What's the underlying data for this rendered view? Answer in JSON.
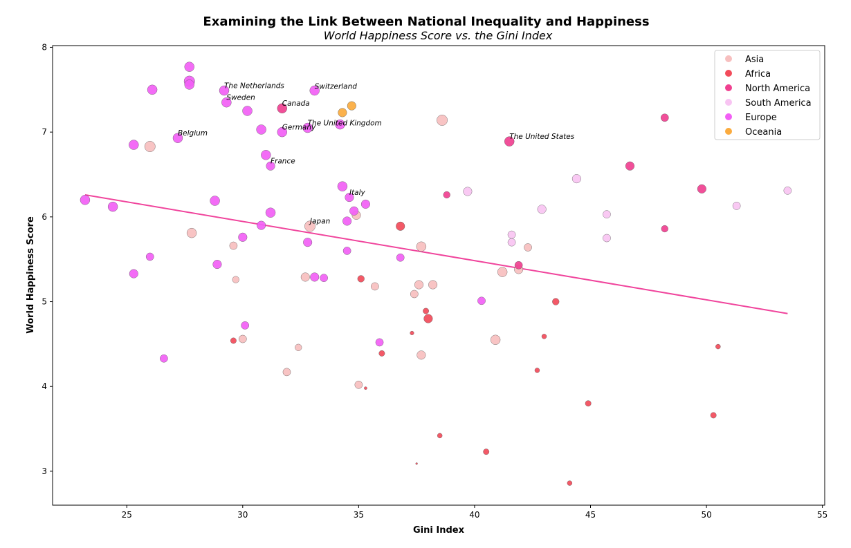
{
  "chart_data": {
    "type": "scatter",
    "title": "Examining the Link Between National Inequality and Happiness",
    "subtitle": "World Happiness Score vs. the Gini Index",
    "xlabel": "Gini Index",
    "ylabel": "World Happiness Score",
    "xlim": [
      21.8,
      55.1
    ],
    "ylim": [
      2.6,
      8.02
    ],
    "xticks": [
      25,
      30,
      35,
      40,
      45,
      50,
      55
    ],
    "yticks": [
      3,
      4,
      5,
      6,
      7,
      8
    ],
    "grid": false,
    "legend_position": "top-right",
    "trendline": {
      "x": [
        23.2,
        53.5
      ],
      "y": [
        6.26,
        4.86
      ],
      "color": "#f0449c"
    },
    "series": [
      {
        "name": "Asia",
        "color": "#f7bfbf",
        "points": [
          [
            26.0,
            6.83,
            11
          ],
          [
            27.8,
            5.81,
            10
          ],
          [
            29.6,
            5.66,
            8
          ],
          [
            29.7,
            5.26,
            7
          ],
          [
            30.0,
            4.56,
            8
          ],
          [
            31.9,
            4.17,
            8
          ],
          [
            32.4,
            4.46,
            7
          ],
          [
            32.7,
            5.29,
            9
          ],
          [
            32.9,
            5.89,
            11
          ],
          [
            34.9,
            6.02,
            9
          ],
          [
            35.0,
            4.02,
            8
          ],
          [
            35.7,
            5.18,
            8
          ],
          [
            37.4,
            5.09,
            8
          ],
          [
            37.6,
            5.2,
            9
          ],
          [
            37.7,
            4.37,
            9
          ],
          [
            37.7,
            5.65,
            10
          ],
          [
            38.2,
            5.2,
            9
          ],
          [
            38.6,
            7.14,
            11
          ],
          [
            40.9,
            4.55,
            10
          ],
          [
            41.2,
            5.35,
            10
          ],
          [
            41.9,
            5.38,
            9
          ],
          [
            42.3,
            5.64,
            8
          ]
        ]
      },
      {
        "name": "Africa",
        "color": "#f24b5a",
        "points": [
          [
            29.6,
            4.54,
            6
          ],
          [
            35.1,
            5.27,
            7
          ],
          [
            35.3,
            3.98,
            3
          ],
          [
            36.0,
            4.39,
            6
          ],
          [
            36.8,
            5.89,
            9
          ],
          [
            37.3,
            4.63,
            4
          ],
          [
            37.5,
            3.09,
            2
          ],
          [
            37.9,
            4.89,
            6
          ],
          [
            38.0,
            4.8,
            9
          ],
          [
            38.5,
            3.42,
            5
          ],
          [
            40.5,
            3.23,
            6
          ],
          [
            42.7,
            4.19,
            5
          ],
          [
            43.0,
            4.59,
            5
          ],
          [
            43.5,
            5.0,
            7
          ],
          [
            44.1,
            2.86,
            5
          ],
          [
            44.9,
            3.8,
            6
          ],
          [
            50.3,
            3.66,
            6
          ],
          [
            50.5,
            4.47,
            5
          ]
        ]
      },
      {
        "name": "North America",
        "color": "#f04090",
        "points": [
          [
            31.7,
            7.28,
            10
          ],
          [
            38.8,
            6.26,
            7
          ],
          [
            41.5,
            6.89,
            10
          ],
          [
            41.9,
            5.43,
            8
          ],
          [
            46.7,
            6.6,
            9
          ],
          [
            48.2,
            7.17,
            8
          ],
          [
            48.2,
            5.86,
            7
          ],
          [
            49.8,
            6.33,
            9
          ]
        ]
      },
      {
        "name": "South America",
        "color": "#f8c4f2",
        "points": [
          [
            39.7,
            6.3,
            9
          ],
          [
            41.6,
            5.79,
            8
          ],
          [
            41.6,
            5.7,
            8
          ],
          [
            42.9,
            6.09,
            9
          ],
          [
            44.4,
            6.45,
            9
          ],
          [
            45.7,
            6.03,
            8
          ],
          [
            45.7,
            5.75,
            8
          ],
          [
            51.3,
            6.13,
            8
          ],
          [
            53.5,
            6.31,
            8
          ]
        ]
      },
      {
        "name": "Europe",
        "color": "#f25ff5",
        "points": [
          [
            23.2,
            6.2,
            10
          ],
          [
            24.4,
            6.12,
            10
          ],
          [
            25.3,
            6.85,
            10
          ],
          [
            25.3,
            5.33,
            9
          ],
          [
            26.0,
            5.53,
            8
          ],
          [
            26.1,
            7.5,
            10
          ],
          [
            26.6,
            4.33,
            8
          ],
          [
            27.2,
            6.93,
            10
          ],
          [
            27.7,
            7.77,
            10
          ],
          [
            27.7,
            7.6,
            11
          ],
          [
            27.7,
            7.56,
            10
          ],
          [
            28.8,
            6.19,
            10
          ],
          [
            28.9,
            5.44,
            9
          ],
          [
            29.2,
            7.49,
            10
          ],
          [
            29.3,
            7.35,
            10
          ],
          [
            30.0,
            5.76,
            9
          ],
          [
            30.1,
            4.72,
            8
          ],
          [
            30.2,
            7.25,
            10
          ],
          [
            30.8,
            7.03,
            10
          ],
          [
            30.8,
            5.9,
            9
          ],
          [
            31.0,
            6.73,
            10
          ],
          [
            31.2,
            6.05,
            10
          ],
          [
            31.2,
            6.6,
            9
          ],
          [
            31.7,
            7.0,
            10
          ],
          [
            32.8,
            7.05,
            10
          ],
          [
            32.8,
            5.7,
            9
          ],
          [
            33.1,
            7.49,
            10
          ],
          [
            33.1,
            5.29,
            9
          ],
          [
            33.5,
            5.28,
            8
          ],
          [
            34.2,
            7.09,
            10
          ],
          [
            34.3,
            6.36,
            10
          ],
          [
            34.5,
            5.95,
            9
          ],
          [
            34.5,
            5.6,
            8
          ],
          [
            34.6,
            6.23,
            9
          ],
          [
            34.8,
            6.07,
            9
          ],
          [
            35.3,
            6.15,
            9
          ],
          [
            35.9,
            4.52,
            8
          ],
          [
            36.8,
            5.52,
            8
          ],
          [
            40.3,
            5.01,
            8
          ]
        ]
      },
      {
        "name": "Oceania",
        "color": "#fbab3e",
        "points": [
          [
            34.3,
            7.23,
            9
          ],
          [
            34.7,
            7.31,
            9
          ]
        ]
      }
    ],
    "annotations": [
      {
        "text": "The Netherlands",
        "x": 29.2,
        "y": 7.52
      },
      {
        "text": "Switzerland",
        "x": 33.1,
        "y": 7.51
      },
      {
        "text": "Sweden",
        "x": 29.3,
        "y": 7.38
      },
      {
        "text": "Canada",
        "x": 31.7,
        "y": 7.31
      },
      {
        "text": "The United Kingdom",
        "x": 32.8,
        "y": 7.08
      },
      {
        "text": "Germany",
        "x": 31.7,
        "y": 7.03
      },
      {
        "text": "Belgium",
        "x": 27.2,
        "y": 6.96
      },
      {
        "text": "The United States",
        "x": 41.5,
        "y": 6.92
      },
      {
        "text": "France",
        "x": 31.2,
        "y": 6.63
      },
      {
        "text": "Italy",
        "x": 34.6,
        "y": 6.26
      },
      {
        "text": "Japan",
        "x": 32.9,
        "y": 5.92
      }
    ]
  }
}
